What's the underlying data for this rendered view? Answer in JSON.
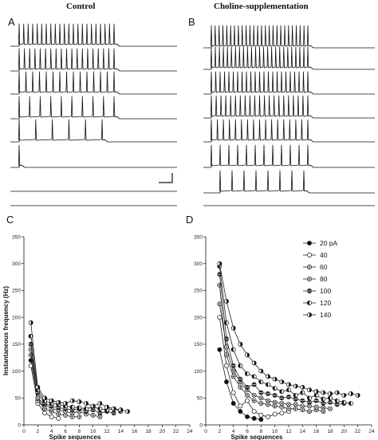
{
  "headers": {
    "left": "Control",
    "right": "Choline-supplementation"
  },
  "panel_labels": {
    "A": "A",
    "B": "B",
    "C": "C",
    "D": "D"
  },
  "traces": {
    "A": [
      {
        "spikes": 22
      },
      {
        "spikes": 19
      },
      {
        "spikes": 15
      },
      {
        "spikes": 10
      },
      {
        "spikes": 6
      },
      {
        "spikes": 1
      },
      {
        "spikes": 0
      }
    ],
    "B": [
      {
        "spikes": 26
      },
      {
        "spikes": 25
      },
      {
        "spikes": 23
      },
      {
        "spikes": 21
      },
      {
        "spikes": 17
      },
      {
        "spikes": 12
      },
      {
        "spikes": 8
      }
    ]
  },
  "chart_data": [
    {
      "panel": "C",
      "type": "line",
      "xlabel": "Spike sequences",
      "ylabel": "Instantaneous frequency (Hz)",
      "xlim": [
        0,
        24
      ],
      "ylim": [
        0,
        350
      ],
      "xticks": [
        0,
        2,
        4,
        6,
        8,
        10,
        12,
        14,
        16,
        18,
        20,
        22,
        24
      ],
      "yticks": [
        0,
        50,
        100,
        150,
        200,
        250,
        300,
        350
      ],
      "series": [
        {
          "marker": "filled",
          "x": [
            1,
            2,
            3
          ],
          "y": [
            120,
            50,
            30
          ]
        },
        {
          "marker": "open",
          "x": [
            1,
            2,
            3,
            4,
            5
          ],
          "y": [
            110,
            40,
            22,
            15,
            12
          ]
        },
        {
          "marker": "circle-plus",
          "x": [
            1,
            2,
            3,
            4,
            5,
            6,
            7,
            8
          ],
          "y": [
            130,
            45,
            30,
            25,
            20,
            18,
            15,
            15
          ]
        },
        {
          "marker": "circle-x",
          "x": [
            1,
            2,
            3,
            4,
            5,
            6,
            7,
            8,
            9,
            10,
            11
          ],
          "y": [
            140,
            50,
            38,
            30,
            28,
            25,
            22,
            25,
            20,
            18,
            15
          ]
        },
        {
          "marker": "dark",
          "x": [
            1,
            2,
            3,
            4,
            5,
            6,
            7,
            8,
            9,
            10,
            11,
            12,
            13
          ],
          "y": [
            150,
            60,
            40,
            35,
            32,
            30,
            28,
            30,
            25,
            28,
            22,
            25,
            22
          ]
        },
        {
          "marker": "half-left",
          "x": [
            1,
            2,
            3,
            4,
            5,
            6,
            7,
            8,
            9,
            10,
            11,
            12,
            13,
            14
          ],
          "y": [
            165,
            65,
            45,
            40,
            38,
            35,
            33,
            32,
            30,
            33,
            30,
            28,
            30,
            25
          ]
        },
        {
          "marker": "half-right",
          "x": [
            1,
            2,
            3,
            4,
            5,
            6,
            7,
            8,
            9,
            10,
            11,
            12,
            13,
            14,
            15
          ],
          "y": [
            190,
            70,
            50,
            45,
            42,
            40,
            45,
            43,
            40,
            35,
            40,
            33,
            30,
            28,
            25
          ]
        }
      ]
    },
    {
      "panel": "D",
      "type": "line",
      "xlabel": "Spike sequences",
      "ylabel": "",
      "xlim": [
        0,
        24
      ],
      "ylim": [
        0,
        350
      ],
      "xticks": [
        0,
        2,
        4,
        6,
        8,
        10,
        12,
        14,
        16,
        18,
        20,
        22,
        24
      ],
      "yticks": [
        0,
        50,
        100,
        150,
        200,
        250,
        300,
        350
      ],
      "series": [
        {
          "name": "20 pA",
          "marker": "filled",
          "x": [
            2,
            3,
            4,
            5,
            6,
            7,
            8
          ],
          "y": [
            140,
            80,
            40,
            25,
            15,
            12,
            10
          ]
        },
        {
          "name": "40",
          "marker": "open",
          "x": [
            2,
            3,
            4,
            5,
            6,
            7,
            8,
            9,
            10,
            11,
            12
          ],
          "y": [
            200,
            110,
            60,
            35,
            45,
            25,
            18,
            15,
            20,
            22,
            25
          ]
        },
        {
          "name": "60",
          "marker": "circle-plus",
          "x": [
            2,
            3,
            4,
            5,
            6,
            7,
            8,
            9,
            10,
            11,
            12,
            13,
            14,
            15,
            16,
            17
          ],
          "y": [
            260,
            130,
            90,
            70,
            55,
            45,
            40,
            38,
            35,
            33,
            30,
            30,
            28,
            25,
            28,
            25
          ]
        },
        {
          "name": "80",
          "marker": "circle-x",
          "x": [
            2,
            3,
            4,
            5,
            6,
            7,
            8,
            9,
            10,
            11,
            12,
            13,
            14,
            15,
            16,
            17,
            18
          ],
          "y": [
            225,
            145,
            100,
            80,
            65,
            55,
            50,
            45,
            42,
            40,
            38,
            38,
            35,
            35,
            33,
            32,
            30
          ]
        },
        {
          "name": "100",
          "marker": "dark",
          "x": [
            2,
            3,
            4,
            5,
            6,
            7,
            8,
            9,
            10,
            11,
            12,
            13,
            14,
            15,
            16,
            17,
            18,
            19,
            20
          ],
          "y": [
            280,
            160,
            110,
            85,
            70,
            75,
            60,
            58,
            55,
            50,
            52,
            48,
            45,
            42,
            45,
            40,
            42,
            38,
            40
          ]
        },
        {
          "name": "120",
          "marker": "half-left",
          "x": [
            2,
            3,
            4,
            5,
            6,
            7,
            8,
            9,
            10,
            11,
            12,
            13,
            14,
            15,
            16,
            17,
            18,
            19,
            20,
            21
          ],
          "y": [
            295,
            190,
            140,
            110,
            95,
            90,
            80,
            75,
            68,
            62,
            65,
            55,
            60,
            50,
            55,
            48,
            50,
            45,
            42,
            40
          ]
        },
        {
          "name": "140",
          "marker": "half-right",
          "x": [
            2,
            3,
            4,
            5,
            6,
            7,
            8,
            9,
            10,
            11,
            12,
            13,
            14,
            15,
            16,
            17,
            18,
            19,
            20,
            21,
            22
          ],
          "y": [
            300,
            230,
            180,
            150,
            130,
            115,
            100,
            90,
            85,
            80,
            75,
            72,
            70,
            65,
            62,
            60,
            58,
            60,
            55,
            58,
            55
          ]
        }
      ]
    }
  ]
}
